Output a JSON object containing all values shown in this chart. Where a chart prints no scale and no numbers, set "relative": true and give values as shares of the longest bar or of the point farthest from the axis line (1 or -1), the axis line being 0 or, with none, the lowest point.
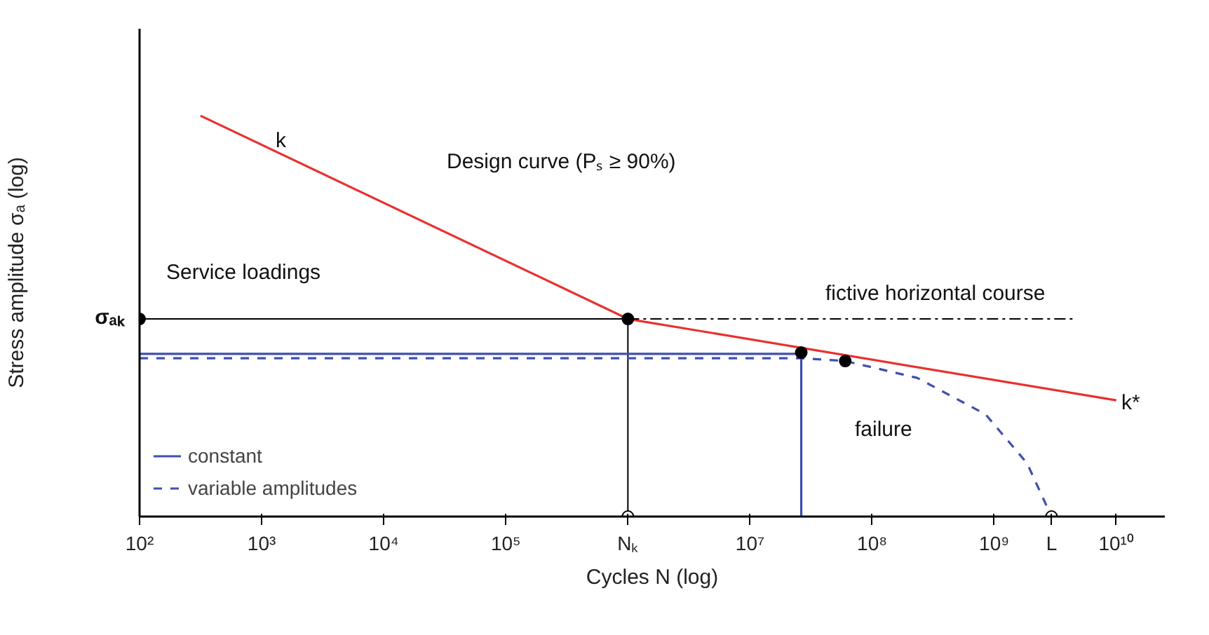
{
  "chart_data": {
    "type": "line",
    "relative": true,
    "log": "x",
    "grid": false,
    "legend": "bottom left",
    "xlabel": "Cycles N (log)",
    "ylabel": "Stress amplitude σₐ (log)",
    "xlim": [
      100,
      25000000000
    ],
    "xticks": [
      {
        "value": 100,
        "label": "10²"
      },
      {
        "value": 1000,
        "label": "10³"
      },
      {
        "value": 10000,
        "label": "10⁴"
      },
      {
        "value": 100000,
        "label": "10⁵"
      },
      {
        "value": 1000000,
        "label": "Nₖ"
      },
      {
        "value": 10000000,
        "label": "10⁷"
      },
      {
        "value": 100000000,
        "label": "10⁸"
      },
      {
        "value": 1000000000,
        "label": "10⁹"
      },
      {
        "value": 2950000000,
        "label": "L"
      },
      {
        "value": 10000000000,
        "label": "10¹⁰"
      }
    ],
    "series": [
      {
        "color": "#e8312f",
        "x": [
          316,
          1000000,
          10000000000
        ],
        "values": [
          1.0,
          0.493,
          0.29
        ]
      },
      {
        "color": "#000000",
        "line_style": "dashdot",
        "x": [
          1000000,
          4600000000
        ],
        "values": [
          0.493,
          0.493
        ]
      },
      {
        "color": "#000000",
        "x": [
          100,
          1000000,
          1000000
        ],
        "values": [
          0.493,
          0.493,
          0
        ]
      },
      {
        "name": "constant",
        "color": "#3f4fb0",
        "x": [
          100,
          26300000,
          26300000
        ],
        "values": [
          0.406,
          0.406,
          0
        ]
      },
      {
        "name": "variable amplitudes",
        "color": "#3f4fb0",
        "line_style": "dashed",
        "x": [
          100,
          26300000,
          60300000,
          234000000,
          850000000,
          1860000000,
          2950000000
        ],
        "values": [
          0.395,
          0.395,
          0.388,
          0.346,
          0.255,
          0.133,
          0
        ]
      },
      {
        "type": "scatter",
        "color": "#000000",
        "marker": "circle",
        "x": [
          100,
          1000000,
          26300000,
          60300000
        ],
        "values": [
          0.493,
          0.493,
          0.409,
          0.388
        ]
      },
      {
        "type": "scatter",
        "color": "#ffffff",
        "marker": "circle",
        "x": [
          1000000,
          2950000000
        ],
        "values": [
          0,
          0
        ]
      }
    ],
    "annotations": [
      "k",
      "Design curve (Pₛ ≥ 90%)",
      "Service loadings",
      "fictive horizontal course",
      "failure",
      "k*",
      "σₐₖ"
    ]
  }
}
